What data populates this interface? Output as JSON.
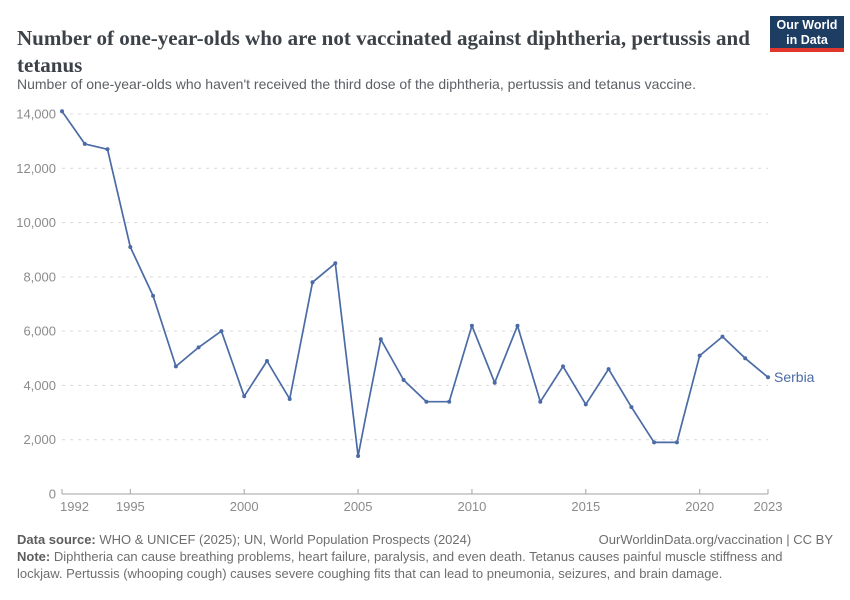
{
  "header": {
    "title": "Number of one-year-olds who are not vaccinated against diphtheria, pertussis and tetanus",
    "subtitle": "Number of one-year-olds who haven't received the third dose of the diphtheria, pertussis and tetanus vaccine.",
    "logo": {
      "line1": "Our World",
      "line2": "in Data"
    }
  },
  "chart_data": {
    "type": "line",
    "title": "Number of one-year-olds who are not vaccinated against diphtheria, pertussis and tetanus",
    "series": [
      {
        "name": "Serbia",
        "x": [
          1992,
          1993,
          1994,
          1995,
          1996,
          1997,
          1998,
          1999,
          2000,
          2001,
          2002,
          2003,
          2004,
          2005,
          2006,
          2007,
          2008,
          2009,
          2010,
          2011,
          2012,
          2013,
          2014,
          2015,
          2016,
          2017,
          2018,
          2019,
          2020,
          2021,
          2022,
          2023
        ],
        "values": [
          14100,
          12900,
          12700,
          9100,
          7300,
          4700,
          5400,
          6000,
          3600,
          4900,
          3500,
          7800,
          8500,
          1400,
          5700,
          4200,
          3400,
          3400,
          6200,
          4100,
          6200,
          3400,
          4700,
          3300,
          4600,
          3200,
          1900,
          1900,
          5100,
          5800,
          5000,
          4300
        ]
      }
    ],
    "series_label": "Serbia",
    "xlabel": "",
    "ylabel": "",
    "xlim": [
      1992,
      2023
    ],
    "ylim": [
      0,
      14000
    ],
    "xticks": [
      1992,
      1995,
      2000,
      2005,
      2010,
      2015,
      2020,
      2023
    ],
    "yticks": [
      0,
      2000,
      4000,
      6000,
      8000,
      10000,
      12000,
      14000
    ],
    "grid": true,
    "legend_position": "end-of-line",
    "line_color": "#4a6ba5",
    "axis_color": "#a3a3a3",
    "tick_label_color": "#8b8b8d",
    "gridline_color": "#d9d9d9"
  },
  "footer": {
    "datasource_label": "Data source:",
    "datasource_text": " WHO & UNICEF (2025); UN, World Population Prospects (2024)",
    "attribution": "OurWorldinData.org/vaccination | CC BY",
    "note_label": "Note:",
    "note_text": " Diphtheria can cause breathing problems, heart failure, paralysis, and even death. Tetanus causes painful muscle stiffness and lockjaw. Pertussis (whooping cough) causes severe coughing fits that can lead to pneumonia, seizures, and brain damage."
  }
}
